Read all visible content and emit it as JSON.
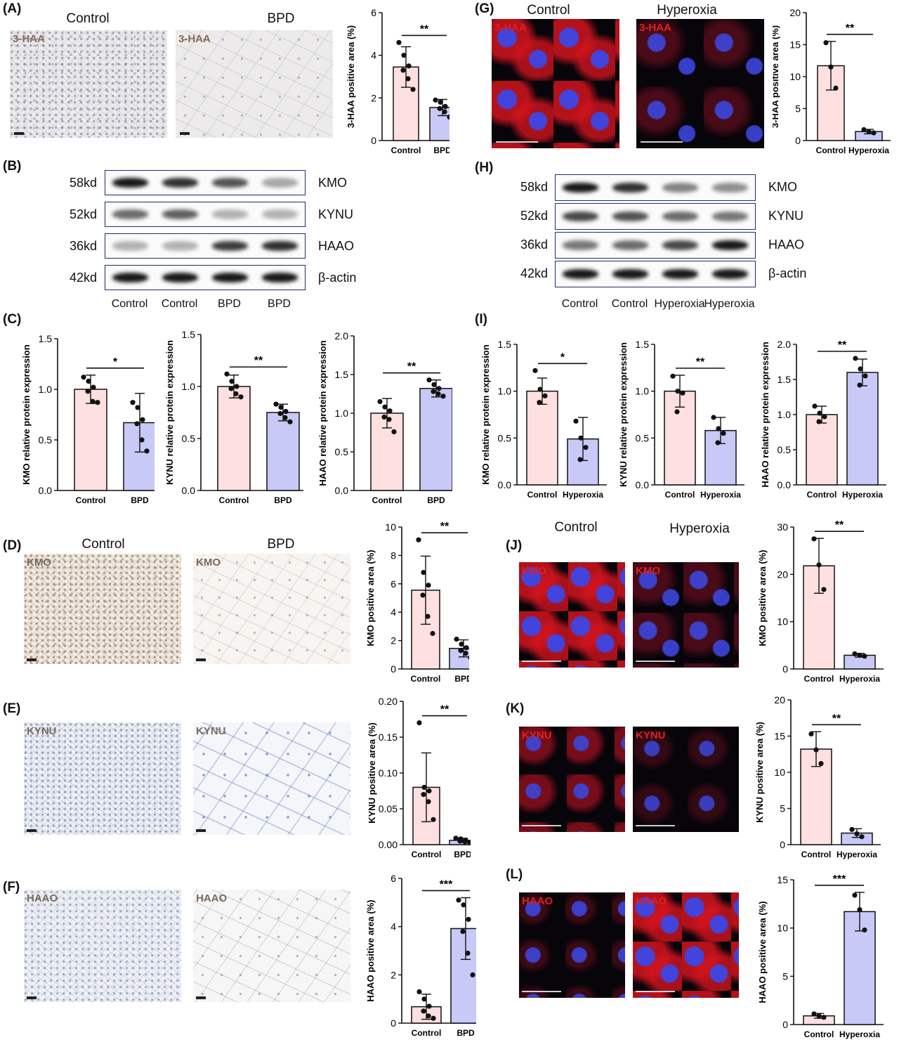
{
  "panels": {
    "A": {
      "label": "(A)",
      "headers": [
        "Control",
        "BPD"
      ],
      "tag": "3-HAA"
    },
    "B": {
      "label": "(B)",
      "markers": [
        "58kd",
        "52kd",
        "36kd",
        "42kd"
      ],
      "proteins": [
        "KMO",
        "KYNU",
        "HAAO",
        "β-actin"
      ],
      "lanes": [
        "Control",
        "Control",
        "BPD",
        "BPD"
      ]
    },
    "C": {
      "label": "(C)"
    },
    "D": {
      "label": "(D)",
      "headers": [
        "Control",
        "BPD"
      ],
      "tag": "KMO"
    },
    "E": {
      "label": "(E)",
      "tag": "KYNU"
    },
    "F": {
      "label": "(F)",
      "tag": "HAAO"
    },
    "G": {
      "label": "(G)",
      "headers": [
        "Control",
        "Hyperoxia"
      ],
      "tag": "3-HAA"
    },
    "H": {
      "label": "(H)",
      "markers": [
        "58kd",
        "52kd",
        "36kd",
        "42kd"
      ],
      "proteins": [
        "KMO",
        "KYNU",
        "HAAO",
        "β-actin"
      ],
      "lanes": [
        "Control",
        "Control",
        "Hyperoxia",
        "Hyperoxia"
      ]
    },
    "I": {
      "label": "(I)"
    },
    "J": {
      "label": "(J)",
      "headers": [
        "Control",
        "Hyperoxia"
      ],
      "tag": "KMO"
    },
    "K": {
      "label": "(K)",
      "tag": "KYNU"
    },
    "L": {
      "label": "(L)",
      "tag": "HAAO"
    }
  },
  "colors": {
    "control_fill": "#fde0df",
    "treat_fill": "#c9c9f7",
    "outline": "#111111"
  },
  "chart_data": [
    {
      "id": "A",
      "type": "bar",
      "categories": [
        "Control",
        "BPD"
      ],
      "ylabel": "3-HAA positive area (%)",
      "ylim": [
        0,
        6
      ],
      "ticks": [
        0,
        2,
        4,
        6
      ],
      "means": [
        3.45,
        1.55
      ],
      "sd": [
        0.95,
        0.38
      ],
      "points": [
        [
          4.6,
          4.0,
          3.5,
          3.3,
          2.9,
          2.4
        ],
        [
          1.9,
          1.8,
          1.6,
          1.5,
          1.35,
          1.1
        ]
      ],
      "sig": "**"
    },
    {
      "id": "G",
      "type": "bar",
      "categories": [
        "Control",
        "Hyperoxia"
      ],
      "ylabel": "3-HAA positive area (%)",
      "ylim": [
        0,
        20
      ],
      "ticks": [
        0,
        5,
        10,
        15,
        20
      ],
      "means": [
        11.7,
        1.4
      ],
      "sd": [
        3.8,
        0.35
      ],
      "points": [
        [
          15.3,
          11.5,
          8.2
        ],
        [
          1.7,
          1.4,
          1.2
        ]
      ],
      "sig": "**"
    },
    {
      "id": "C-KMO",
      "type": "bar",
      "categories": [
        "Control",
        "BPD"
      ],
      "ylabel": "KMO relative protein expression",
      "ylim": [
        0,
        1.5
      ],
      "ticks": [
        "0.0",
        "0.5",
        "1.0",
        "1.5"
      ],
      "means": [
        1.0,
        0.67
      ],
      "sd": [
        0.14,
        0.29
      ],
      "points": [
        [
          1.12,
          1.08,
          1.02,
          0.98,
          0.88,
          0.87
        ],
        [
          0.87,
          0.82,
          0.7,
          0.66,
          0.5,
          0.39
        ]
      ],
      "sig": "*"
    },
    {
      "id": "C-KYNU",
      "type": "bar",
      "categories": [
        "Control",
        "BPD"
      ],
      "ylabel": "KYNU relative protein expression",
      "ylim": [
        0,
        1.5
      ],
      "ticks": [
        "0.0",
        "0.5",
        "1.0",
        "1.5"
      ],
      "means": [
        1.0,
        0.75
      ],
      "sd": [
        0.11,
        0.08
      ],
      "points": [
        [
          1.12,
          1.05,
          1.0,
          0.98,
          0.93,
          0.9
        ],
        [
          0.83,
          0.8,
          0.76,
          0.74,
          0.7,
          0.66
        ]
      ],
      "sig": "**"
    },
    {
      "id": "C-HAAO",
      "type": "bar",
      "categories": [
        "Control",
        "BPD"
      ],
      "ylabel": "HAAO relative protein expression",
      "ylim": [
        0,
        2.0
      ],
      "ticks": [
        "0.0",
        "0.5",
        "1.0",
        "1.5",
        "2.0"
      ],
      "means": [
        1.0,
        1.32
      ],
      "sd": [
        0.19,
        0.11
      ],
      "points": [
        [
          1.15,
          1.08,
          1.03,
          0.95,
          0.92,
          0.76
        ],
        [
          1.43,
          1.37,
          1.32,
          1.28,
          1.25,
          1.22
        ]
      ],
      "sig": "**"
    },
    {
      "id": "I-KMO",
      "type": "bar",
      "categories": [
        "Control",
        "Hyperoxia"
      ],
      "ylabel": "KMO relative protein expression",
      "ylim": [
        0,
        1.5
      ],
      "ticks": [
        "0.0",
        "0.5",
        "1.0",
        "1.5"
      ],
      "means": [
        1.0,
        0.49
      ],
      "sd": [
        0.14,
        0.23
      ],
      "points": [
        [
          1.22,
          1.02,
          0.95,
          0.88
        ],
        [
          0.68,
          0.5,
          0.4,
          0.27
        ]
      ],
      "sig": "*"
    },
    {
      "id": "I-KYNU",
      "type": "bar",
      "categories": [
        "Control",
        "Hyperoxia"
      ],
      "ylabel": "KYNU relative protein expression",
      "ylim": [
        0,
        1.5
      ],
      "ticks": [
        "0.0",
        "0.5",
        "1.0",
        "1.5"
      ],
      "means": [
        1.0,
        0.58
      ],
      "sd": [
        0.17,
        0.14
      ],
      "points": [
        [
          1.16,
          1.0,
          0.98,
          0.78
        ],
        [
          0.72,
          0.6,
          0.55,
          0.45
        ]
      ],
      "sig": "**"
    },
    {
      "id": "I-HAAO",
      "type": "bar",
      "categories": [
        "Control",
        "Hyperoxia"
      ],
      "ylabel": "HAAO relative protein expression",
      "ylim": [
        0,
        2.0
      ],
      "ticks": [
        "0.0",
        "0.5",
        "1.0",
        "1.5",
        "2.0"
      ],
      "means": [
        1.0,
        1.6
      ],
      "sd": [
        0.12,
        0.19
      ],
      "points": [
        [
          1.12,
          1.02,
          0.97,
          0.9
        ],
        [
          1.8,
          1.65,
          1.55,
          1.42
        ]
      ],
      "sig": "**"
    },
    {
      "id": "D",
      "type": "bar",
      "categories": [
        "Control",
        "BPD"
      ],
      "ylabel": "KMO positive area (%)",
      "ylim": [
        0,
        10
      ],
      "ticks": [
        0,
        2,
        4,
        6,
        8,
        10
      ],
      "means": [
        5.55,
        1.45
      ],
      "sd": [
        2.4,
        0.6
      ],
      "points": [
        [
          9.1,
          6.8,
          5.9,
          5.2,
          3.7,
          2.5
        ],
        [
          2.1,
          1.75,
          1.5,
          1.3,
          1.1,
          0.8
        ]
      ],
      "sig": "**"
    },
    {
      "id": "E",
      "type": "bar",
      "categories": [
        "Control",
        "BPD"
      ],
      "ylabel": "KYNU positive area (%)",
      "ylim": [
        0,
        0.2
      ],
      "ticks": [
        "0.00",
        "0.05",
        "0.10",
        "0.15",
        "0.20"
      ],
      "means": [
        0.08,
        0.006
      ],
      "sd": [
        0.048,
        0.003
      ],
      "points": [
        [
          0.17,
          0.08,
          0.075,
          0.07,
          0.06,
          0.035
        ],
        [
          0.009,
          0.008,
          0.006,
          0.005,
          0.004,
          0.003
        ]
      ],
      "sig": "**"
    },
    {
      "id": "F",
      "type": "bar",
      "categories": [
        "Control",
        "BPD"
      ],
      "ylabel": "HAAO positive area (%)",
      "ylim": [
        0,
        6
      ],
      "ticks": [
        0,
        2,
        4,
        6
      ],
      "means": [
        0.68,
        3.92
      ],
      "sd": [
        0.52,
        1.28
      ],
      "points": [
        [
          1.3,
          1.0,
          0.7,
          0.5,
          0.3,
          0.2
        ],
        [
          5.1,
          4.9,
          4.3,
          3.8,
          2.9,
          2.0
        ]
      ],
      "sig": "***"
    },
    {
      "id": "J",
      "type": "bar",
      "categories": [
        "Control",
        "Hyperoxia"
      ],
      "ylabel": "KMO positive area (%)",
      "ylim": [
        0,
        30
      ],
      "ticks": [
        0,
        10,
        20,
        30
      ],
      "means": [
        21.8,
        2.9
      ],
      "sd": [
        5.8,
        0.4
      ],
      "points": [
        [
          27.5,
          22.0,
          16.8
        ],
        [
          3.2,
          2.9,
          2.7
        ]
      ],
      "sig": "**"
    },
    {
      "id": "K",
      "type": "bar",
      "categories": [
        "Control",
        "Hyperoxia"
      ],
      "ylabel": "KYNU positive area (%)",
      "ylim": [
        0,
        20
      ],
      "ticks": [
        0,
        5,
        10,
        15,
        20
      ],
      "means": [
        13.2,
        1.6
      ],
      "sd": [
        2.4,
        0.6
      ],
      "points": [
        [
          15.3,
          13.1,
          11.2
        ],
        [
          2.1,
          1.5,
          1.1
        ]
      ],
      "sig": "**"
    },
    {
      "id": "L",
      "type": "bar",
      "categories": [
        "Control",
        "Hyperoxia"
      ],
      "ylabel": "HAAO positive area (%)",
      "ylim": [
        0,
        15
      ],
      "ticks": [
        0,
        5,
        10,
        15
      ],
      "means": [
        0.9,
        11.7
      ],
      "sd": [
        0.25,
        2.0
      ],
      "points": [
        [
          1.1,
          0.9,
          0.75
        ],
        [
          13.4,
          11.9,
          9.8
        ]
      ],
      "sig": "***"
    }
  ]
}
